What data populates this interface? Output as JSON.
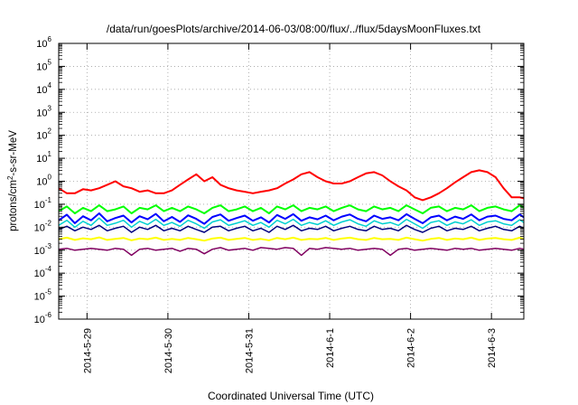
{
  "chart_data": {
    "type": "line",
    "title": "/data/run/goesPlots/archive/2014-06-03/08:00/flux/../flux/5daysMoonFluxes.txt",
    "xlabel": "Coordinated Universal Time (UTC)",
    "ylabel": "protons/cm²-s-sr-MeV",
    "ylabel_parts": {
      "before": "protons/cm",
      "sup": "2",
      "after": "-s-sr-MeV"
    },
    "yscale": "log",
    "ylim": [
      1e-06,
      1000000.0
    ],
    "x_range_days": [
      -0.35,
      5.4
    ],
    "x_start_date": "2014-05-29",
    "grid": true,
    "yticks": [
      {
        "base": "10",
        "exp": "-6"
      },
      {
        "base": "10",
        "exp": "-5"
      },
      {
        "base": "10",
        "exp": "-4"
      },
      {
        "base": "10",
        "exp": "-3"
      },
      {
        "base": "10",
        "exp": "-2"
      },
      {
        "base": "10",
        "exp": "-1"
      },
      {
        "base": "10",
        "exp": "0"
      },
      {
        "base": "10",
        "exp": "1"
      },
      {
        "base": "10",
        "exp": "2"
      },
      {
        "base": "10",
        "exp": "3"
      },
      {
        "base": "10",
        "exp": "4"
      },
      {
        "base": "10",
        "exp": "5"
      },
      {
        "base": "10",
        "exp": "6"
      }
    ],
    "xticks": [
      "2014-5-29",
      "2014-5-30",
      "2014-5-31",
      "2014-6-1",
      "2014-6-2",
      "2014-6-3"
    ],
    "series": [
      {
        "color": "#ff0000",
        "width": 2,
        "x": [
          -0.35,
          -0.25,
          -0.15,
          -0.05,
          0.05,
          0.15,
          0.25,
          0.35,
          0.45,
          0.55,
          0.65,
          0.75,
          0.85,
          0.95,
          1.05,
          1.15,
          1.25,
          1.35,
          1.45,
          1.55,
          1.65,
          1.75,
          1.85,
          1.95,
          2.05,
          2.15,
          2.25,
          2.35,
          2.45,
          2.55,
          2.65,
          2.75,
          2.85,
          2.95,
          3.05,
          3.15,
          3.25,
          3.35,
          3.45,
          3.55,
          3.65,
          3.75,
          3.85,
          3.95,
          4.05,
          4.15,
          4.25,
          4.35,
          4.45,
          4.55,
          4.65,
          4.75,
          4.85,
          4.95,
          5.05,
          5.15,
          5.25,
          5.35,
          5.4
        ],
        "y": [
          0.5,
          0.3,
          0.3,
          0.45,
          0.4,
          0.5,
          0.7,
          1.0,
          0.6,
          0.5,
          0.35,
          0.4,
          0.3,
          0.3,
          0.4,
          0.7,
          1.2,
          2.0,
          1.0,
          1.5,
          0.7,
          0.5,
          0.4,
          0.35,
          0.3,
          0.35,
          0.4,
          0.5,
          0.8,
          1.2,
          2.0,
          2.5,
          1.5,
          1.0,
          0.8,
          0.8,
          1.0,
          1.5,
          2.2,
          2.5,
          1.8,
          1.0,
          0.6,
          0.4,
          0.2,
          0.15,
          0.2,
          0.3,
          0.5,
          0.9,
          1.5,
          2.5,
          3.0,
          2.5,
          1.5,
          0.5,
          0.2,
          0.2,
          0.18
        ]
      },
      {
        "color": "#00ff00",
        "width": 2,
        "x": [
          -0.35,
          -0.25,
          -0.15,
          -0.05,
          0.05,
          0.15,
          0.25,
          0.35,
          0.45,
          0.55,
          0.65,
          0.75,
          0.85,
          0.95,
          1.05,
          1.15,
          1.25,
          1.35,
          1.45,
          1.55,
          1.65,
          1.75,
          1.85,
          1.95,
          2.05,
          2.15,
          2.25,
          2.35,
          2.45,
          2.55,
          2.65,
          2.75,
          2.85,
          2.95,
          3.05,
          3.15,
          3.25,
          3.35,
          3.45,
          3.55,
          3.65,
          3.75,
          3.85,
          3.95,
          4.05,
          4.15,
          4.25,
          4.35,
          4.45,
          4.55,
          4.65,
          4.75,
          4.85,
          4.95,
          5.05,
          5.15,
          5.25,
          5.35,
          5.4
        ],
        "y": [
          0.05,
          0.08,
          0.04,
          0.07,
          0.05,
          0.09,
          0.05,
          0.06,
          0.08,
          0.04,
          0.07,
          0.06,
          0.09,
          0.05,
          0.07,
          0.05,
          0.08,
          0.06,
          0.04,
          0.07,
          0.09,
          0.05,
          0.06,
          0.08,
          0.05,
          0.07,
          0.04,
          0.08,
          0.06,
          0.09,
          0.05,
          0.07,
          0.06,
          0.08,
          0.05,
          0.07,
          0.09,
          0.06,
          0.05,
          0.08,
          0.06,
          0.07,
          0.05,
          0.09,
          0.06,
          0.04,
          0.07,
          0.08,
          0.05,
          0.07,
          0.06,
          0.09,
          0.05,
          0.07,
          0.08,
          0.06,
          0.05,
          0.09,
          0.07
        ]
      },
      {
        "color": "#00d0d0",
        "width": 1.5,
        "x": [
          -0.35,
          -0.25,
          -0.15,
          -0.05,
          0.05,
          0.15,
          0.25,
          0.35,
          0.45,
          0.55,
          0.65,
          0.75,
          0.85,
          0.95,
          1.05,
          1.15,
          1.25,
          1.35,
          1.45,
          1.55,
          1.65,
          1.75,
          1.85,
          1.95,
          2.05,
          2.15,
          2.25,
          2.35,
          2.45,
          2.55,
          2.65,
          2.75,
          2.85,
          2.95,
          3.05,
          3.15,
          3.25,
          3.35,
          3.45,
          3.55,
          3.65,
          3.75,
          3.85,
          3.95,
          4.05,
          4.15,
          4.25,
          4.35,
          4.45,
          4.55,
          4.65,
          4.75,
          4.85,
          4.95,
          5.05,
          5.15,
          5.25,
          5.35,
          5.4
        ],
        "y": [
          0.012,
          0.02,
          0.01,
          0.018,
          0.012,
          0.025,
          0.012,
          0.015,
          0.02,
          0.01,
          0.018,
          0.013,
          0.022,
          0.012,
          0.016,
          0.011,
          0.02,
          0.014,
          0.009,
          0.017,
          0.021,
          0.012,
          0.015,
          0.019,
          0.012,
          0.016,
          0.01,
          0.02,
          0.014,
          0.022,
          0.012,
          0.016,
          0.013,
          0.019,
          0.012,
          0.017,
          0.021,
          0.014,
          0.011,
          0.019,
          0.014,
          0.016,
          0.012,
          0.022,
          0.014,
          0.009,
          0.016,
          0.019,
          0.012,
          0.017,
          0.014,
          0.021,
          0.012,
          0.017,
          0.019,
          0.014,
          0.012,
          0.021,
          0.016
        ]
      },
      {
        "color": "#0000ff",
        "width": 2,
        "x": [
          -0.35,
          -0.25,
          -0.15,
          -0.05,
          0.05,
          0.15,
          0.25,
          0.35,
          0.45,
          0.55,
          0.65,
          0.75,
          0.85,
          0.95,
          1.05,
          1.15,
          1.25,
          1.35,
          1.45,
          1.55,
          1.65,
          1.75,
          1.85,
          1.95,
          2.05,
          2.15,
          2.25,
          2.35,
          2.45,
          2.55,
          2.65,
          2.75,
          2.85,
          2.95,
          3.05,
          3.15,
          3.25,
          3.35,
          3.45,
          3.55,
          3.65,
          3.75,
          3.85,
          3.95,
          4.05,
          4.15,
          4.25,
          4.35,
          4.45,
          4.55,
          4.65,
          4.75,
          4.85,
          4.95,
          5.05,
          5.15,
          5.25,
          5.35,
          5.4
        ],
        "y": [
          0.02,
          0.035,
          0.015,
          0.03,
          0.02,
          0.04,
          0.018,
          0.025,
          0.032,
          0.016,
          0.03,
          0.022,
          0.038,
          0.018,
          0.028,
          0.017,
          0.033,
          0.023,
          0.014,
          0.028,
          0.036,
          0.019,
          0.025,
          0.032,
          0.019,
          0.027,
          0.016,
          0.034,
          0.023,
          0.037,
          0.019,
          0.027,
          0.022,
          0.032,
          0.02,
          0.029,
          0.036,
          0.023,
          0.018,
          0.032,
          0.023,
          0.027,
          0.02,
          0.037,
          0.023,
          0.015,
          0.027,
          0.032,
          0.02,
          0.029,
          0.023,
          0.036,
          0.02,
          0.029,
          0.032,
          0.023,
          0.02,
          0.036,
          0.027
        ]
      },
      {
        "color": "#000080",
        "width": 1.5,
        "x": [
          -0.35,
          -0.25,
          -0.15,
          -0.05,
          0.05,
          0.15,
          0.25,
          0.35,
          0.45,
          0.55,
          0.65,
          0.75,
          0.85,
          0.95,
          1.05,
          1.15,
          1.25,
          1.35,
          1.45,
          1.55,
          1.65,
          1.75,
          1.85,
          1.95,
          2.05,
          2.15,
          2.25,
          2.35,
          2.45,
          2.55,
          2.65,
          2.75,
          2.85,
          2.95,
          3.05,
          3.15,
          3.25,
          3.35,
          3.45,
          3.55,
          3.65,
          3.75,
          3.85,
          3.95,
          4.05,
          4.15,
          4.25,
          4.35,
          4.45,
          4.55,
          4.65,
          4.75,
          4.85,
          4.95,
          5.05,
          5.15,
          5.25,
          5.35,
          5.4
        ],
        "y": [
          0.008,
          0.011,
          0.007,
          0.01,
          0.008,
          0.012,
          0.007,
          0.009,
          0.011,
          0.006,
          0.01,
          0.008,
          0.012,
          0.007,
          0.009,
          0.007,
          0.011,
          0.008,
          0.006,
          0.01,
          0.011,
          0.007,
          0.009,
          0.011,
          0.007,
          0.009,
          0.006,
          0.011,
          0.008,
          0.012,
          0.007,
          0.009,
          0.008,
          0.011,
          0.007,
          0.009,
          0.011,
          0.008,
          0.007,
          0.011,
          0.008,
          0.009,
          0.007,
          0.012,
          0.008,
          0.006,
          0.009,
          0.011,
          0.007,
          0.009,
          0.008,
          0.011,
          0.007,
          0.009,
          0.011,
          0.008,
          0.007,
          0.011,
          0.009
        ]
      },
      {
        "color": "#ffff00",
        "width": 2,
        "x": [
          -0.35,
          -0.25,
          -0.15,
          -0.05,
          0.05,
          0.15,
          0.25,
          0.35,
          0.45,
          0.55,
          0.65,
          0.75,
          0.85,
          0.95,
          1.05,
          1.15,
          1.25,
          1.35,
          1.45,
          1.55,
          1.65,
          1.75,
          1.85,
          1.95,
          2.05,
          2.15,
          2.25,
          2.35,
          2.45,
          2.55,
          2.65,
          2.75,
          2.85,
          2.95,
          3.05,
          3.15,
          3.25,
          3.35,
          3.45,
          3.55,
          3.65,
          3.75,
          3.85,
          3.95,
          4.05,
          4.15,
          4.25,
          4.35,
          4.45,
          4.55,
          4.65,
          4.75,
          4.85,
          4.95,
          5.05,
          5.15,
          5.25,
          5.35,
          5.4
        ],
        "y": [
          0.003,
          0.0035,
          0.0028,
          0.0033,
          0.003,
          0.0036,
          0.0028,
          0.0031,
          0.0034,
          0.0027,
          0.0032,
          0.003,
          0.0035,
          0.0028,
          0.0031,
          0.0028,
          0.0034,
          0.003,
          0.0026,
          0.0032,
          0.0035,
          0.0028,
          0.0031,
          0.0034,
          0.0028,
          0.0031,
          0.0027,
          0.0034,
          0.003,
          0.0035,
          0.0028,
          0.0031,
          0.003,
          0.0034,
          0.0028,
          0.0032,
          0.0035,
          0.003,
          0.0028,
          0.0034,
          0.003,
          0.0031,
          0.0028,
          0.0035,
          0.003,
          0.0026,
          0.0031,
          0.0034,
          0.0028,
          0.0032,
          0.003,
          0.0035,
          0.0028,
          0.0032,
          0.0034,
          0.003,
          0.0028,
          0.0035,
          0.0031
        ]
      },
      {
        "color": "#800060",
        "width": 1.5,
        "x": [
          -0.35,
          -0.25,
          -0.15,
          -0.05,
          0.05,
          0.15,
          0.25,
          0.35,
          0.45,
          0.55,
          0.65,
          0.75,
          0.85,
          0.95,
          1.05,
          1.15,
          1.25,
          1.35,
          1.45,
          1.55,
          1.65,
          1.75,
          1.85,
          1.95,
          2.05,
          2.15,
          2.25,
          2.35,
          2.45,
          2.55,
          2.65,
          2.75,
          2.85,
          2.95,
          3.05,
          3.15,
          3.25,
          3.35,
          3.45,
          3.55,
          3.65,
          3.75,
          3.85,
          3.95,
          4.05,
          4.15,
          4.25,
          4.35,
          4.45,
          4.55,
          4.65,
          4.75,
          4.85,
          4.95,
          5.05,
          5.15,
          5.25,
          5.35,
          5.4
        ],
        "y": [
          0.0011,
          0.0012,
          0.001,
          0.0011,
          0.0012,
          0.0011,
          0.001,
          0.0012,
          0.0011,
          0.0006,
          0.0011,
          0.0012,
          0.001,
          0.0011,
          0.0012,
          0.0009,
          0.0012,
          0.0011,
          0.0007,
          0.0011,
          0.0013,
          0.001,
          0.0011,
          0.0012,
          0.001,
          0.0013,
          0.0012,
          0.0011,
          0.0013,
          0.0012,
          0.0006,
          0.0012,
          0.0011,
          0.0013,
          0.0012,
          0.0011,
          0.0012,
          0.001,
          0.0011,
          0.0012,
          0.0011,
          0.0006,
          0.0011,
          0.0012,
          0.001,
          0.0011,
          0.0012,
          0.0011,
          0.001,
          0.0012,
          0.0011,
          0.0012,
          0.001,
          0.0011,
          0.0012,
          0.0011,
          0.001,
          0.0012,
          0.0011
        ]
      }
    ]
  }
}
